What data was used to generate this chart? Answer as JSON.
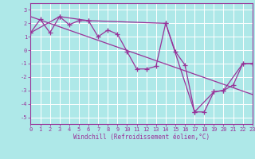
{
  "title": "",
  "xlabel": "Windchill (Refroidissement éolien,°C)",
  "xlim": [
    0,
    23
  ],
  "ylim": [
    -5.5,
    3.5
  ],
  "yticks": [
    -5,
    -4,
    -3,
    -2,
    -1,
    0,
    1,
    2,
    3
  ],
  "xticks": [
    0,
    1,
    2,
    3,
    4,
    5,
    6,
    7,
    8,
    9,
    10,
    11,
    12,
    13,
    14,
    15,
    16,
    17,
    18,
    19,
    20,
    21,
    22,
    23
  ],
  "bg_color": "#aee8e8",
  "grid_color": "#ffffff",
  "line_color": "#993399",
  "line1_x": [
    0,
    1,
    2,
    3,
    4,
    5,
    6,
    7,
    8,
    9,
    10,
    11,
    12,
    13,
    14,
    15,
    16,
    17,
    18,
    19,
    20,
    21,
    22,
    23
  ],
  "line1_y": [
    1.3,
    2.3,
    1.3,
    2.5,
    1.9,
    2.2,
    2.2,
    1.0,
    1.5,
    1.2,
    -0.1,
    -1.4,
    -1.4,
    -1.2,
    2.0,
    -0.1,
    -1.1,
    -4.6,
    -4.6,
    -3.1,
    -3.0,
    -2.6,
    -1.0,
    -1.0
  ],
  "line2_x": [
    0,
    3,
    6,
    14,
    17,
    19,
    20,
    22,
    23
  ],
  "line2_y": [
    1.3,
    2.5,
    2.2,
    2.0,
    -4.6,
    -3.1,
    -3.0,
    -1.0,
    -1.0
  ],
  "line3_x": [
    0,
    23
  ],
  "line3_y": [
    2.5,
    -3.3
  ],
  "tick_fontsize": 5,
  "xlabel_fontsize": 5.5
}
